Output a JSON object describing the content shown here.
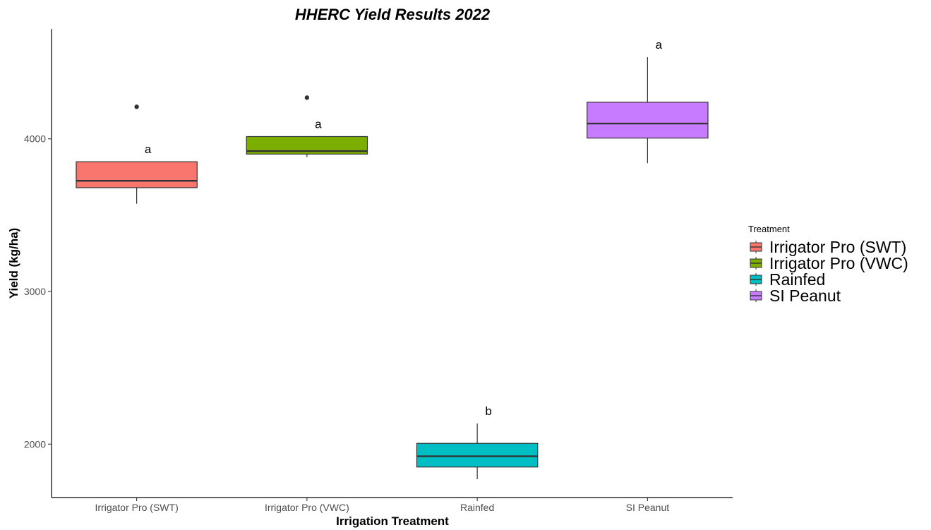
{
  "chart_data": {
    "type": "boxplot",
    "title": "HHERC Yield Results 2022",
    "xlabel": "Irrigation Treatment",
    "ylabel": "Yield (kg/ha)",
    "ylim": [
      1650,
      4720
    ],
    "y_ticks": [
      2000,
      3000,
      4000
    ],
    "y_tick_labels": [
      "2000",
      "3000",
      "4000"
    ],
    "grid": false,
    "legend": {
      "title": "Treatment",
      "position": "right",
      "items": [
        "Irrigator Pro (SWT)",
        "Irrigator Pro (VWC)",
        "Rainfed",
        "SI Peanut"
      ]
    },
    "categories": [
      "Irrigator Pro (SWT)",
      "Irrigator Pro (VWC)",
      "Rainfed",
      "SI Peanut"
    ],
    "boxes": [
      {
        "category": "Irrigator Pro (SWT)",
        "color": "#f8766d",
        "whisker_low": 3575,
        "q1": 3680,
        "median": 3725,
        "q3": 3850,
        "whisker_high": 3850,
        "outliers": [
          4210
        ],
        "letter": "a"
      },
      {
        "category": "Irrigator Pro (VWC)",
        "color": "#7cae00",
        "whisker_low": 3880,
        "q1": 3900,
        "median": 3920,
        "q3": 4015,
        "whisker_high": 4015,
        "outliers": [
          4270
        ],
        "letter": "a"
      },
      {
        "category": "Rainfed",
        "color": "#00bfc4",
        "whisker_low": 1770,
        "q1": 1850,
        "median": 1920,
        "q3": 2005,
        "whisker_high": 2135,
        "outliers": [],
        "letter": "b"
      },
      {
        "category": "SI Peanut",
        "color": "#c77cff",
        "whisker_low": 3840,
        "q1": 4005,
        "median": 4100,
        "q3": 4240,
        "whisker_high": 4535,
        "outliers": [],
        "letter": "a"
      }
    ]
  }
}
